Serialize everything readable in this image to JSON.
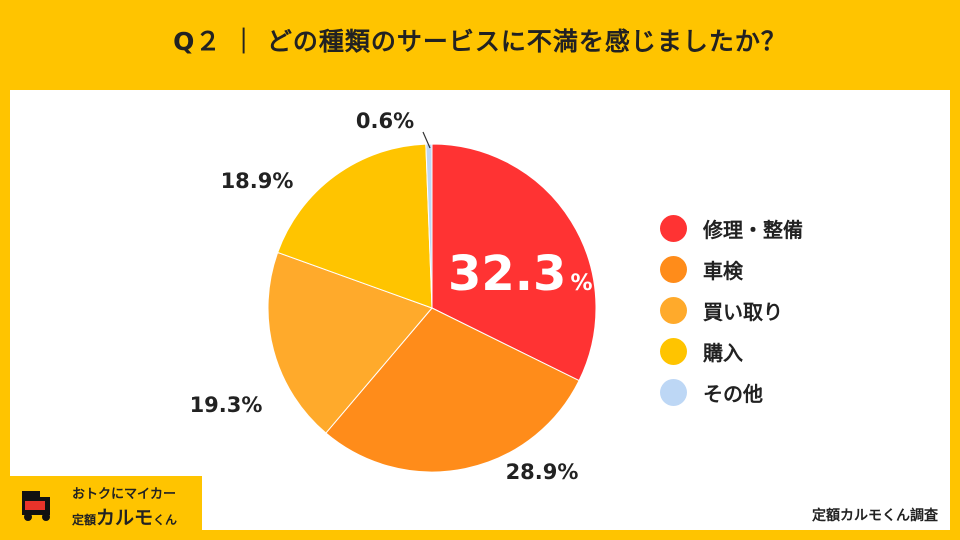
{
  "title": "Q２ ｜ どの種類のサービスに不満を感じましたか？",
  "chart_data": {
    "type": "pie",
    "title": "Q２ ｜ どの種類のサービスに不満を感じましたか？",
    "slices": [
      {
        "label": "修理・整備",
        "value": 32.3,
        "display": "32.3",
        "unit": "%",
        "color": "#FF3333"
      },
      {
        "label": "車検",
        "value": 28.9,
        "display": "28.9%",
        "color": "#FF8C1A"
      },
      {
        "label": "買い取り",
        "value": 19.3,
        "display": "19.3%",
        "color": "#FFAA2B"
      },
      {
        "label": "購入",
        "value": 18.9,
        "display": "18.9%",
        "color": "#FFC400"
      },
      {
        "label": "その他",
        "value": 0.6,
        "display": "0.6%",
        "color": "#BDD7F5"
      }
    ],
    "legend_position": "right"
  },
  "logo": {
    "line1": "おトクにマイカー",
    "line2_small": "定額",
    "line2_main": "カルモ",
    "line2_suffix": "くん"
  },
  "credit": "定額カルモくん調査"
}
